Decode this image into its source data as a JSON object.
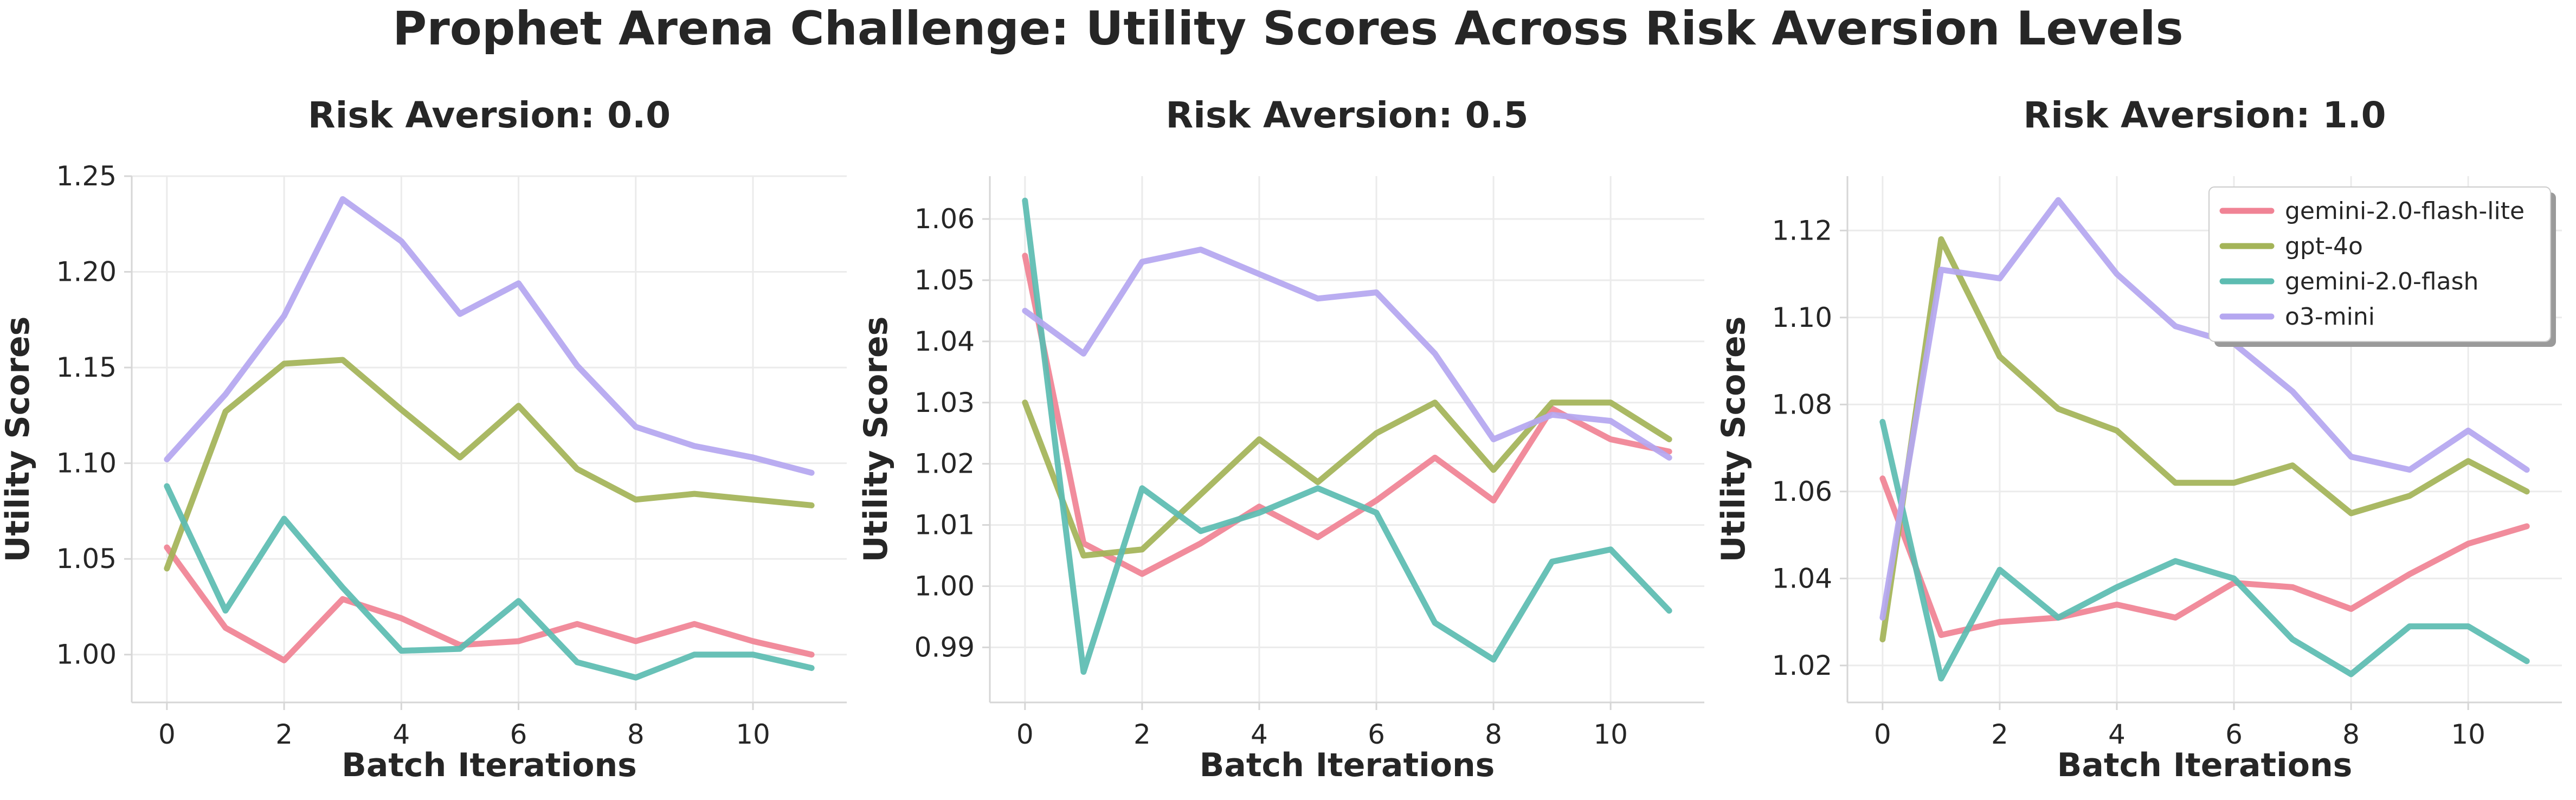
{
  "figure_title": "Prophet Arena Challenge: Utility Scores Across Risk Aversion Levels",
  "colors": {
    "gemini-2.0-flash-lite": "#f08395",
    "gpt-4o": "#a4b458",
    "gemini-2.0-flash": "#5dbcb1",
    "o3-mini": "#b5a7f0"
  },
  "chart_data": [
    {
      "type": "line",
      "title": "Risk Aversion: 0.0",
      "xlabel": "Batch Iterations",
      "ylabel": "Utility Scores",
      "x": [
        0,
        1,
        2,
        3,
        4,
        5,
        6,
        7,
        8,
        9,
        10,
        11
      ],
      "xlim": [
        -0.6,
        11.6
      ],
      "ylim": [
        0.975,
        1.25
      ],
      "xticks": [
        0,
        2,
        4,
        6,
        8,
        10
      ],
      "xtick_labels": [
        "0",
        "2",
        "4",
        "6",
        "8",
        "10"
      ],
      "yticks": [
        1.0,
        1.05,
        1.1,
        1.15,
        1.2,
        1.25
      ],
      "ytick_labels": [
        "1.00",
        "1.05",
        "1.10",
        "1.15",
        "1.20",
        "1.25"
      ],
      "grid": true,
      "series": [
        {
          "name": "gemini-2.0-flash-lite",
          "values": [
            1.056,
            1.014,
            0.997,
            1.029,
            1.019,
            1.005,
            1.007,
            1.016,
            1.007,
            1.016,
            1.007,
            1.0
          ]
        },
        {
          "name": "gpt-4o",
          "values": [
            1.045,
            1.127,
            1.152,
            1.154,
            1.128,
            1.103,
            1.13,
            1.097,
            1.081,
            1.084,
            1.081,
            1.078
          ]
        },
        {
          "name": "gemini-2.0-flash",
          "values": [
            1.088,
            1.023,
            1.071,
            1.035,
            1.002,
            1.003,
            1.028,
            0.996,
            0.988,
            1.0,
            1.0,
            0.993
          ]
        },
        {
          "name": "o3-mini",
          "values": [
            1.102,
            1.136,
            1.177,
            1.238,
            1.216,
            1.178,
            1.194,
            1.151,
            1.119,
            1.109,
            1.103,
            1.095
          ]
        }
      ]
    },
    {
      "type": "line",
      "title": "Risk Aversion: 0.5",
      "xlabel": "Batch Iterations",
      "ylabel": "Utility Scores",
      "x": [
        0,
        1,
        2,
        3,
        4,
        5,
        6,
        7,
        8,
        9,
        10,
        11
      ],
      "xlim": [
        -0.6,
        11.6
      ],
      "ylim": [
        0.981,
        1.067
      ],
      "xticks": [
        0,
        2,
        4,
        6,
        8,
        10
      ],
      "xtick_labels": [
        "0",
        "2",
        "4",
        "6",
        "8",
        "10"
      ],
      "yticks": [
        0.99,
        1.0,
        1.01,
        1.02,
        1.03,
        1.04,
        1.05,
        1.06
      ],
      "ytick_labels": [
        "0.99",
        "1.00",
        "1.01",
        "1.02",
        "1.03",
        "1.04",
        "1.05",
        "1.06"
      ],
      "grid": true,
      "series": [
        {
          "name": "gemini-2.0-flash-lite",
          "values": [
            1.054,
            1.007,
            1.002,
            1.007,
            1.013,
            1.008,
            1.014,
            1.021,
            1.014,
            1.029,
            1.024,
            1.022
          ]
        },
        {
          "name": "gpt-4o",
          "values": [
            1.03,
            1.005,
            1.006,
            1.015,
            1.024,
            1.017,
            1.025,
            1.03,
            1.019,
            1.03,
            1.03,
            1.024
          ]
        },
        {
          "name": "gemini-2.0-flash",
          "values": [
            1.063,
            0.986,
            1.016,
            1.009,
            1.012,
            1.016,
            1.012,
            0.994,
            0.988,
            1.004,
            1.006,
            0.996
          ]
        },
        {
          "name": "o3-mini",
          "values": [
            1.045,
            1.038,
            1.053,
            1.055,
            1.051,
            1.047,
            1.048,
            1.038,
            1.024,
            1.028,
            1.027,
            1.021
          ]
        }
      ]
    },
    {
      "type": "line",
      "title": "Risk Aversion: 1.0",
      "xlabel": "Batch Iterations",
      "ylabel": "Utility Scores",
      "x": [
        0,
        1,
        2,
        3,
        4,
        5,
        6,
        7,
        8,
        9,
        10,
        11
      ],
      "xlim": [
        -0.6,
        11.6
      ],
      "ylim": [
        1.0115,
        1.1325
      ],
      "xticks": [
        0,
        2,
        4,
        6,
        8,
        10
      ],
      "xtick_labels": [
        "0",
        "2",
        "4",
        "6",
        "8",
        "10"
      ],
      "yticks": [
        1.02,
        1.04,
        1.06,
        1.08,
        1.1,
        1.12
      ],
      "ytick_labels": [
        "1.02",
        "1.04",
        "1.06",
        "1.08",
        "1.10",
        "1.12"
      ],
      "grid": true,
      "legend": "top-right",
      "series": [
        {
          "name": "gemini-2.0-flash-lite",
          "values": [
            1.063,
            1.027,
            1.03,
            1.031,
            1.034,
            1.031,
            1.039,
            1.038,
            1.033,
            1.041,
            1.048,
            1.052
          ]
        },
        {
          "name": "gpt-4o",
          "values": [
            1.026,
            1.118,
            1.091,
            1.079,
            1.074,
            1.062,
            1.062,
            1.066,
            1.055,
            1.059,
            1.067,
            1.06
          ]
        },
        {
          "name": "gemini-2.0-flash",
          "values": [
            1.076,
            1.017,
            1.042,
            1.031,
            1.038,
            1.044,
            1.04,
            1.026,
            1.018,
            1.029,
            1.029,
            1.021
          ]
        },
        {
          "name": "o3-mini",
          "values": [
            1.031,
            1.111,
            1.109,
            1.127,
            1.11,
            1.098,
            1.094,
            1.083,
            1.068,
            1.065,
            1.074,
            1.065
          ]
        }
      ]
    }
  ],
  "legend_items": [
    "gemini-2.0-flash-lite",
    "gpt-4o",
    "gemini-2.0-flash",
    "o3-mini"
  ]
}
